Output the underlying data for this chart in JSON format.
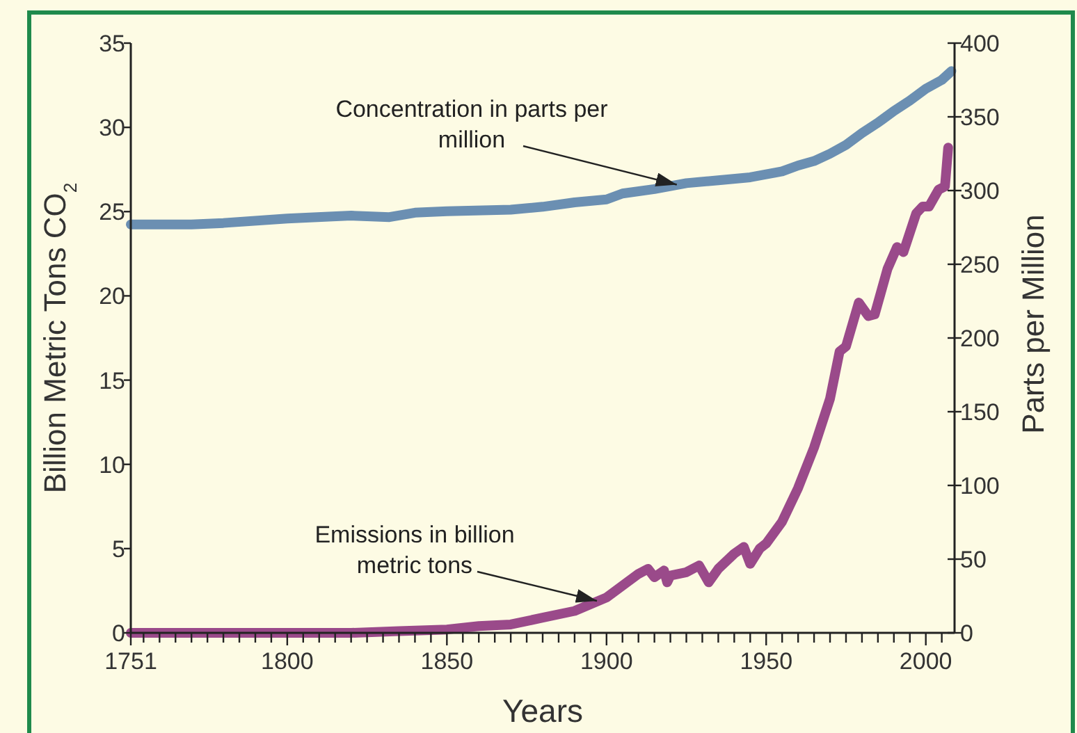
{
  "chart_data": {
    "type": "line",
    "xlabel": "Years",
    "ylabel": "Billion Metric Tons CO$_{2}$",
    "y2label": "Parts per Million",
    "xlim": [
      1751,
      2009
    ],
    "xticks": [
      1751,
      {
        "value": 1755,
        "label": null
      },
      {
        "value": 1760,
        "label": null
      },
      {
        "value": 1765,
        "label": null
      },
      {
        "value": 1770,
        "label": null
      },
      {
        "value": 1775,
        "label": null
      },
      {
        "value": 1780,
        "label": null
      },
      {
        "value": 1785,
        "label": null
      },
      {
        "value": 1790,
        "label": null
      },
      {
        "value": 1795,
        "label": null
      },
      1800,
      {
        "value": 1805,
        "label": null
      },
      {
        "value": 1810,
        "label": null
      },
      {
        "value": 1815,
        "label": null
      },
      {
        "value": 1820,
        "label": null
      },
      {
        "value": 1825,
        "label": null
      },
      {
        "value": 1830,
        "label": null
      },
      {
        "value": 1835,
        "label": null
      },
      {
        "value": 1840,
        "label": null
      },
      {
        "value": 1845,
        "label": null
      },
      1850,
      {
        "value": 1855,
        "label": null
      },
      {
        "value": 1860,
        "label": null
      },
      {
        "value": 1865,
        "label": null
      },
      {
        "value": 1870,
        "label": null
      },
      {
        "value": 1875,
        "label": null
      },
      {
        "value": 1880,
        "label": null
      },
      {
        "value": 1885,
        "label": null
      },
      {
        "value": 1890,
        "label": null
      },
      {
        "value": 1895,
        "label": null
      },
      1900,
      {
        "value": 1905,
        "label": null
      },
      {
        "value": 1910,
        "label": null
      },
      {
        "value": 1915,
        "label": null
      },
      {
        "value": 1920,
        "label": null
      },
      {
        "value": 1925,
        "label": null
      },
      {
        "value": 1930,
        "label": null
      },
      {
        "value": 1935,
        "label": null
      },
      {
        "value": 1940,
        "label": null
      },
      {
        "value": 1945,
        "label": null
      },
      1950,
      {
        "value": 1955,
        "label": null
      },
      {
        "value": 1960,
        "label": null
      },
      {
        "value": 1965,
        "label": null
      },
      {
        "value": 1970,
        "label": null
      },
      {
        "value": 1975,
        "label": null
      },
      {
        "value": 1980,
        "label": null
      },
      {
        "value": 1985,
        "label": null
      },
      {
        "value": 1990,
        "label": null
      },
      {
        "value": 1995,
        "label": null
      },
      2000,
      {
        "value": 2005,
        "label": null
      }
    ],
    "ylim": [
      0,
      35
    ],
    "yticks": [
      0,
      5,
      10,
      15,
      20,
      25,
      30,
      35
    ],
    "y2lim": [
      0,
      400
    ],
    "y2ticks": [
      0,
      50,
      100,
      150,
      200,
      250,
      300,
      350,
      400
    ],
    "grid": false,
    "marker": "none",
    "line_style": "solid",
    "series": [
      {
        "color": "#6b8fb2",
        "axis": "y2",
        "x": [
          1751,
          1770,
          1780,
          1800,
          1820,
          1832,
          1840,
          1850,
          1870,
          1880,
          1890,
          1900,
          1905,
          1915,
          1925,
          1935,
          1945,
          1950,
          1955,
          1960,
          1965,
          1970,
          1975,
          1980,
          1985,
          1990,
          1995,
          2000,
          2005,
          2008
        ],
        "values": [
          277,
          277,
          278,
          281,
          283,
          282,
          285,
          286,
          287,
          289,
          292,
          294,
          298,
          301,
          305,
          307,
          309,
          311,
          313,
          317,
          320,
          325,
          331,
          339,
          346,
          354,
          361,
          369,
          375,
          381
        ]
      },
      {
        "color": "#9a4a8a",
        "x": [
          1751,
          1780,
          1800,
          1820,
          1835,
          1850,
          1860,
          1870,
          1880,
          1890,
          1900,
          1905,
          1910,
          1913,
          1915,
          1918,
          1919,
          1920,
          1925,
          1929,
          1932,
          1935,
          1940,
          1943,
          1945,
          1948,
          1950,
          1955,
          1960,
          1965,
          1970,
          1973,
          1975,
          1979,
          1982,
          1984,
          1988,
          1991,
          1993,
          1997,
          1999,
          2001,
          2004,
          2006,
          2007
        ],
        "values": [
          0,
          0,
          0,
          0,
          0.1,
          0.2,
          0.4,
          0.5,
          0.9,
          1.3,
          2.1,
          2.8,
          3.5,
          3.8,
          3.3,
          3.7,
          3.0,
          3.4,
          3.6,
          4.0,
          3.0,
          3.8,
          4.7,
          5.1,
          4.1,
          5.0,
          5.3,
          6.6,
          8.6,
          11.0,
          13.9,
          16.7,
          17.0,
          19.6,
          18.8,
          18.9,
          21.6,
          22.9,
          22.6,
          24.9,
          25.3,
          25.3,
          26.3,
          26.5,
          28.8
        ]
      }
    ],
    "annotations": [
      {
        "text": "Concentration in parts per\nmillion",
        "x": 1922,
        "y": 26.6
      },
      {
        "text": "Emissions in billion\nmetric tons",
        "x": 1897,
        "y": 1.9
      }
    ]
  }
}
